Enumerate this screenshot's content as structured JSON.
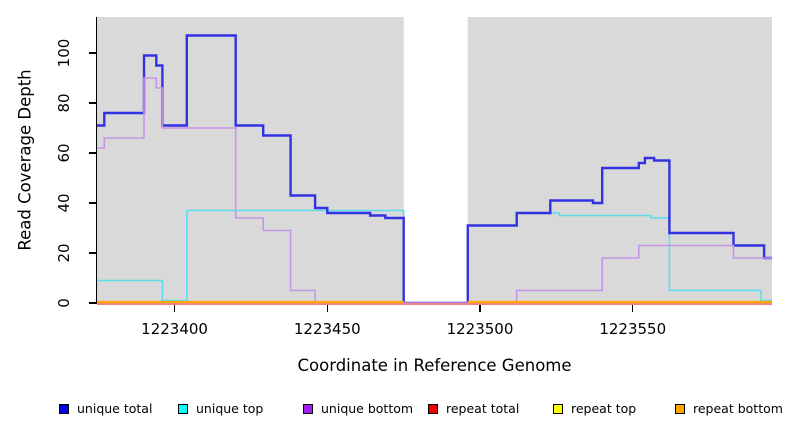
{
  "chart_data": {
    "type": "step-line",
    "title": "",
    "x_axis": {
      "label": "Coordinate in Reference Genome",
      "min": 1223374.6,
      "max": 1223595.6,
      "ticks": [
        1223400,
        1223450,
        1223500,
        1223550
      ],
      "tick_labels": [
        "1223400",
        "1223450",
        "1223500",
        "1223550"
      ]
    },
    "y_axis": {
      "label": "Read Coverage Depth",
      "min": 0,
      "max": 114.4,
      "ticks": [
        0,
        20,
        40,
        60,
        80,
        100
      ],
      "tick_labels": [
        "0",
        "20",
        "40",
        "60",
        "80",
        "100"
      ]
    },
    "plot_background": "#d9d9d9",
    "coverage_gap": {
      "from": 1223475,
      "to": 1223496
    },
    "series": [
      {
        "name": "unique top",
        "color": "#5cdded",
        "width": 1.6,
        "segments": [
          {
            "points": [
              [
                1223374.6,
                9
              ],
              [
                1223396,
                1
              ],
              [
                1223404,
                37
              ],
              [
                1223475,
                0
              ],
              [
                1223496,
                31
              ],
              [
                1223512,
                36
              ],
              [
                1223526,
                35
              ],
              [
                1223556,
                34
              ],
              [
                1223562,
                5
              ],
              [
                1223592,
                1
              ]
            ],
            "end": 1223595.6
          }
        ]
      },
      {
        "name": "unique total",
        "color": "#3232e2",
        "width": 2.4,
        "segments": [
          {
            "points": [
              [
                1223374.6,
                71
              ],
              [
                1223377,
                76
              ],
              [
                1223390,
                99
              ],
              [
                1223394,
                95
              ],
              [
                1223396,
                71
              ],
              [
                1223404,
                107
              ],
              [
                1223420,
                71
              ],
              [
                1223429,
                67
              ],
              [
                1223438,
                43
              ],
              [
                1223446,
                38
              ],
              [
                1223450,
                36
              ],
              [
                1223464,
                35
              ],
              [
                1223469,
                34
              ],
              [
                1223475,
                0
              ],
              [
                1223496,
                31
              ],
              [
                1223512,
                36
              ],
              [
                1223523,
                41
              ],
              [
                1223537,
                40
              ],
              [
                1223540,
                54
              ],
              [
                1223552,
                56
              ],
              [
                1223554,
                58
              ],
              [
                1223557,
                57
              ],
              [
                1223562,
                28
              ],
              [
                1223583,
                23
              ],
              [
                1223593,
                18
              ]
            ],
            "end": 1223595.6
          }
        ]
      },
      {
        "name": "unique bottom",
        "color": "#c795e5",
        "width": 1.6,
        "segments": [
          {
            "points": [
              [
                1223374.6,
                62
              ],
              [
                1223377,
                66
              ],
              [
                1223390,
                90
              ],
              [
                1223394,
                86
              ],
              [
                1223396,
                70
              ],
              [
                1223420,
                34
              ],
              [
                1223429,
                29
              ],
              [
                1223438,
                5
              ],
              [
                1223446,
                0
              ],
              [
                1223512,
                5
              ],
              [
                1223540,
                18
              ],
              [
                1223552,
                23
              ],
              [
                1223583,
                18
              ]
            ],
            "end": 1223595.6
          }
        ]
      },
      {
        "name": "repeat total",
        "color": "#f08383",
        "width": 2,
        "dy": 1,
        "segments": [
          {
            "points": [
              [
                1223374.6,
                0
              ]
            ],
            "end": 1223595.6
          }
        ]
      },
      {
        "name": "repeat top",
        "color": "#ffff00",
        "width": 1.8,
        "dy": -1,
        "segments": [
          {
            "points": [
              [
                1223374.6,
                0
              ]
            ],
            "end": 1223475
          },
          {
            "points": [
              [
                1223496,
                0
              ]
            ],
            "end": 1223595.6
          }
        ]
      },
      {
        "name": "repeat bottom",
        "color": "#ffa500",
        "width": 2.2,
        "dy": -1,
        "segments": [
          {
            "points": [
              [
                1223374.6,
                0
              ]
            ],
            "end": 1223475
          },
          {
            "points": [
              [
                1223496,
                0
              ]
            ],
            "end": 1223595.6
          }
        ]
      }
    ]
  },
  "legend": {
    "items": [
      {
        "label": "unique total",
        "color": "#0000e6"
      },
      {
        "label": "unique top",
        "color": "#00ffff"
      },
      {
        "label": "unique bottom",
        "color": "#a020f0"
      },
      {
        "label": "repeat total",
        "color": "#ee0000"
      },
      {
        "label": "repeat top",
        "color": "#ffff00"
      },
      {
        "label": "repeat bottom",
        "color": "#ffa500"
      }
    ]
  }
}
